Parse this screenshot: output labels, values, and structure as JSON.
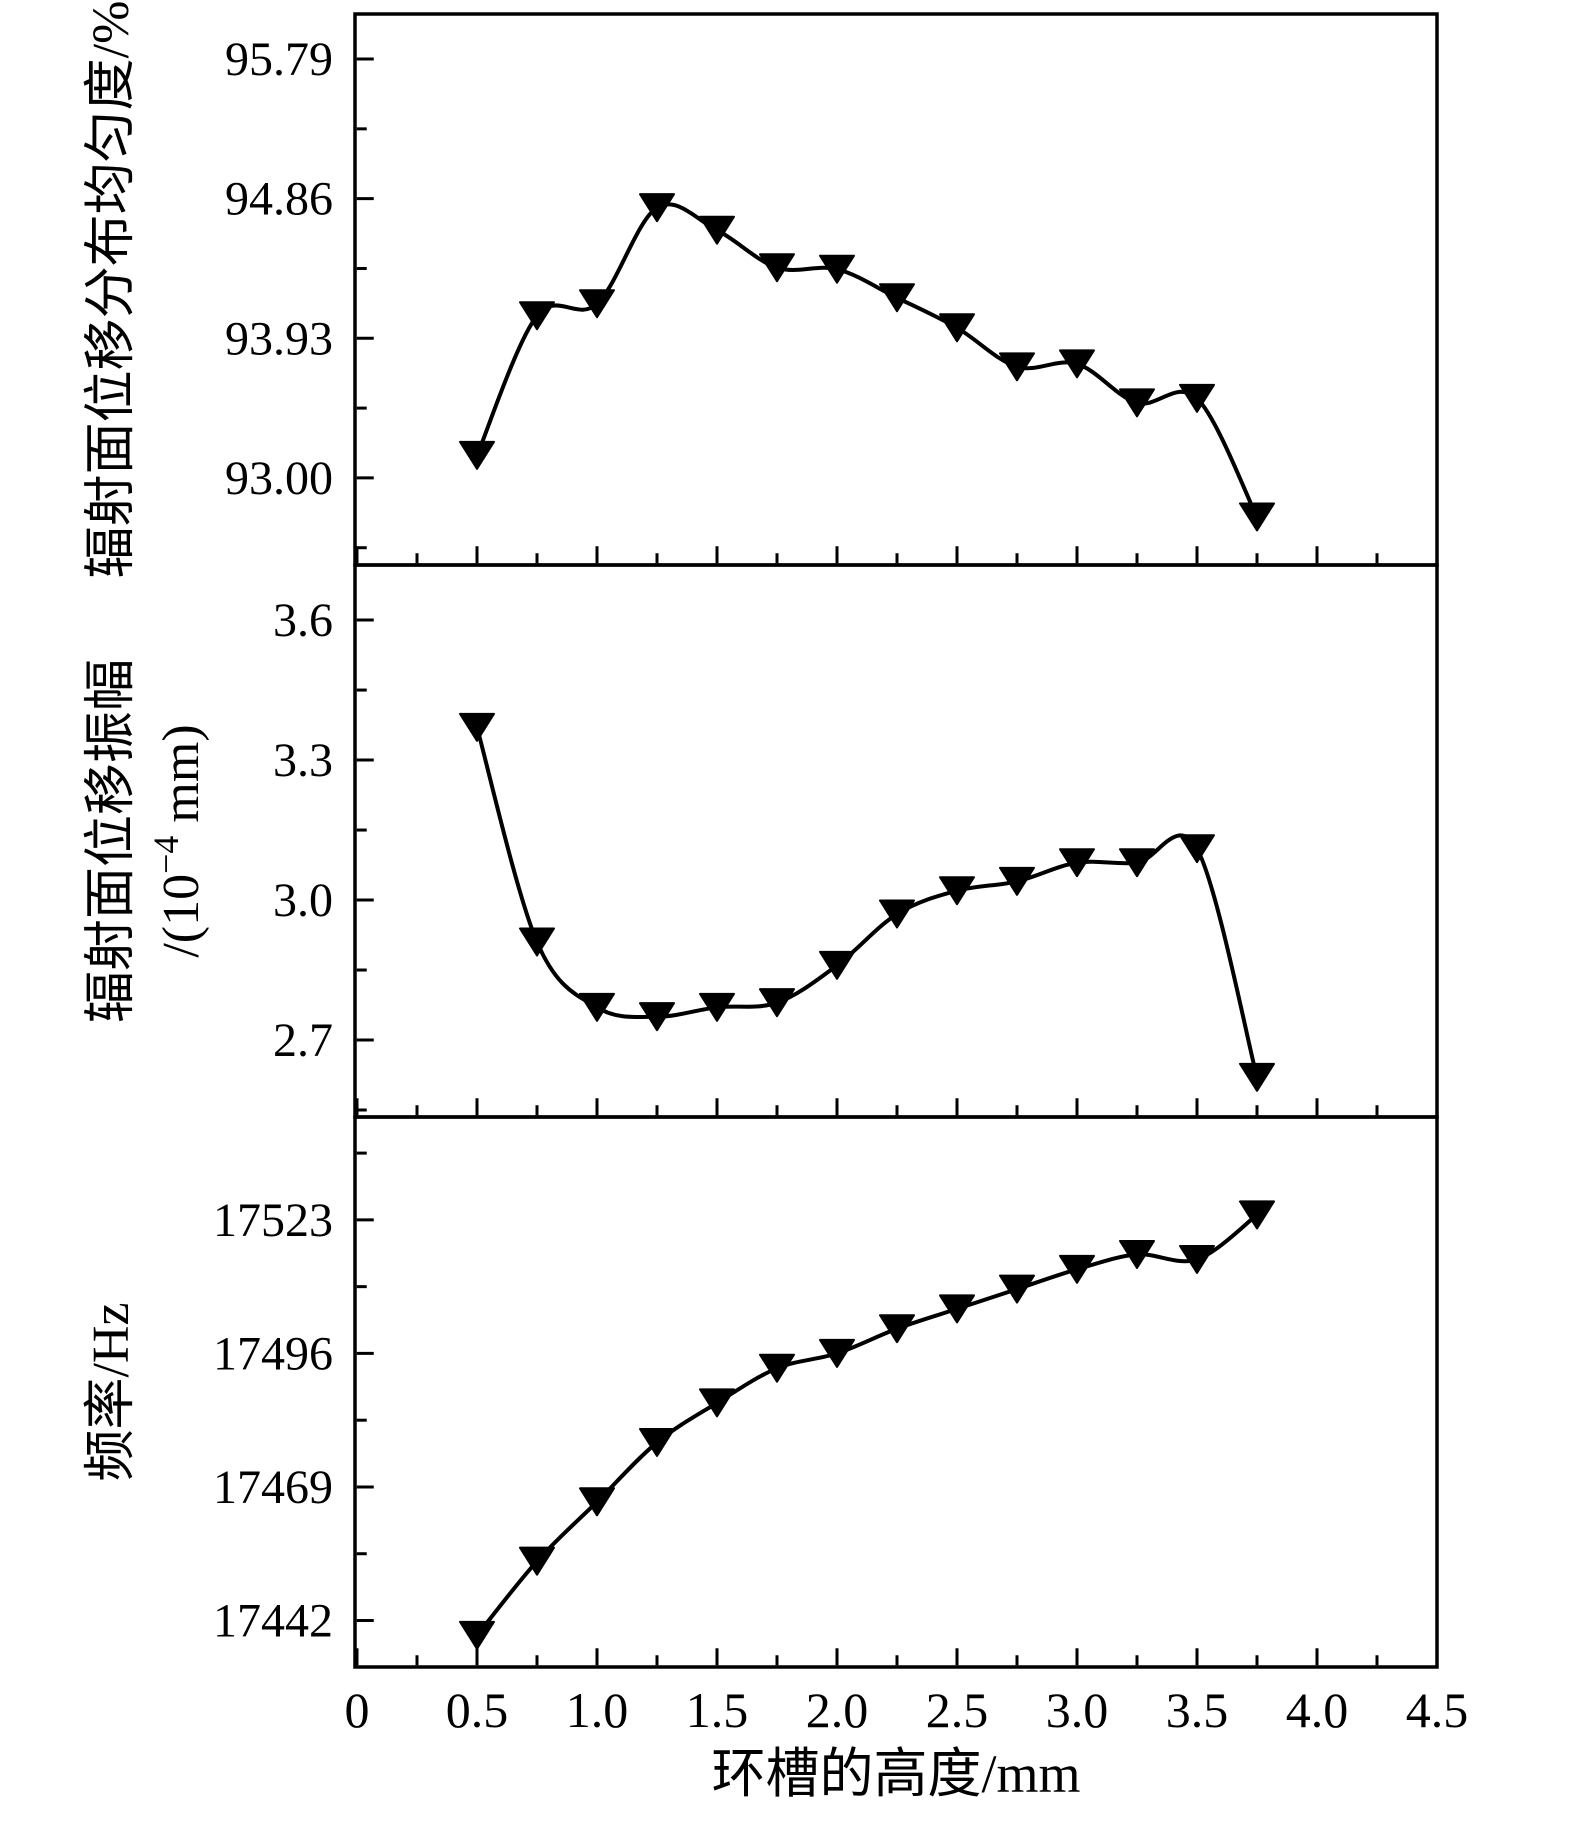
{
  "figure": {
    "background": "#ffffff",
    "ink_color": "#000000",
    "x_axis": {
      "title": "环槽的高度/mm",
      "range": [
        0,
        4.5
      ],
      "major_ticks": [
        0,
        0.5,
        1,
        1.5,
        2,
        2.5,
        3,
        3.5,
        4,
        4.5
      ],
      "major_tick_labels": [
        "0",
        "0.5",
        "1.0",
        "1.5",
        "2.0",
        "2.5",
        "3.0",
        "3.5",
        "4.0",
        "4.5"
      ],
      "minor_ticks": [
        0.25,
        0.75,
        1.25,
        1.75,
        2.25,
        2.75,
        3.25,
        3.75,
        4.25
      ]
    },
    "marker_style": "filled-triangle-down",
    "line_style": "solid-black-smooth"
  },
  "chart_data": [
    {
      "type": "line",
      "panel": "top",
      "ylabel": "辐射面位移分布均匀度/%",
      "ylabel_line2": "",
      "ylim": [
        92.42,
        96.09
      ],
      "y_major_ticks": [
        93.0,
        93.93,
        94.86,
        95.79
      ],
      "y_major_tick_labels": [
        "93.00",
        "93.93",
        "94.86",
        "95.79"
      ],
      "y_minor_ticks": [
        92.535,
        93.465,
        94.395,
        95.325
      ],
      "x": [
        0.5,
        0.75,
        1.0,
        1.25,
        1.5,
        1.75,
        2.0,
        2.25,
        2.5,
        2.75,
        3.0,
        3.25,
        3.5,
        3.75
      ],
      "series": [
        {
          "name": "辐射面位移分布均匀度",
          "values": [
            93.15,
            94.08,
            94.16,
            94.8,
            94.65,
            94.4,
            94.39,
            94.2,
            94.0,
            93.74,
            93.76,
            93.5,
            93.53,
            92.74
          ]
        }
      ],
      "legend": "none",
      "grid": false
    },
    {
      "type": "line",
      "panel": "middle",
      "ylabel": "辐射面位移振幅",
      "ylabel_line2": "/(10⁻⁴ mm)",
      "ylim": [
        2.535,
        3.718
      ],
      "y_major_ticks": [
        2.7,
        3.0,
        3.3,
        3.6
      ],
      "y_major_tick_labels": [
        "2.7",
        "3.0",
        "3.3",
        "3.6"
      ],
      "y_minor_ticks": [
        2.55,
        2.85,
        3.15,
        3.45
      ],
      "x": [
        0.5,
        0.75,
        1.0,
        1.25,
        1.5,
        1.75,
        2.0,
        2.25,
        2.5,
        2.75,
        3.0,
        3.25,
        3.5,
        3.75
      ],
      "series": [
        {
          "name": "辐射面位移振幅",
          "values": [
            3.37,
            2.91,
            2.77,
            2.75,
            2.77,
            2.78,
            2.86,
            2.97,
            3.02,
            3.04,
            3.08,
            3.08,
            3.11,
            2.62
          ]
        }
      ],
      "legend": "none",
      "grid": false
    },
    {
      "type": "line",
      "panel": "bottom",
      "ylabel": "频率/Hz",
      "ylabel_line2": "",
      "ylim": [
        17432.6,
        17543.8
      ],
      "y_major_ticks": [
        17442,
        17469,
        17496,
        17523
      ],
      "y_major_tick_labels": [
        "17442",
        "17469",
        "17496",
        "17523"
      ],
      "y_minor_ticks": [
        17455.5,
        17482.5,
        17509.5,
        17536.5
      ],
      "x": [
        0.5,
        0.75,
        1.0,
        1.25,
        1.5,
        1.75,
        2.0,
        2.25,
        2.5,
        2.75,
        3.0,
        3.25,
        3.5,
        3.75
      ],
      "series": [
        {
          "name": "频率",
          "values": [
            17439,
            17454,
            17466,
            17478,
            17486,
            17493,
            17496,
            17501,
            17505,
            17509,
            17513,
            17516,
            17515,
            17524
          ]
        }
      ],
      "legend": "none",
      "grid": false
    }
  ]
}
